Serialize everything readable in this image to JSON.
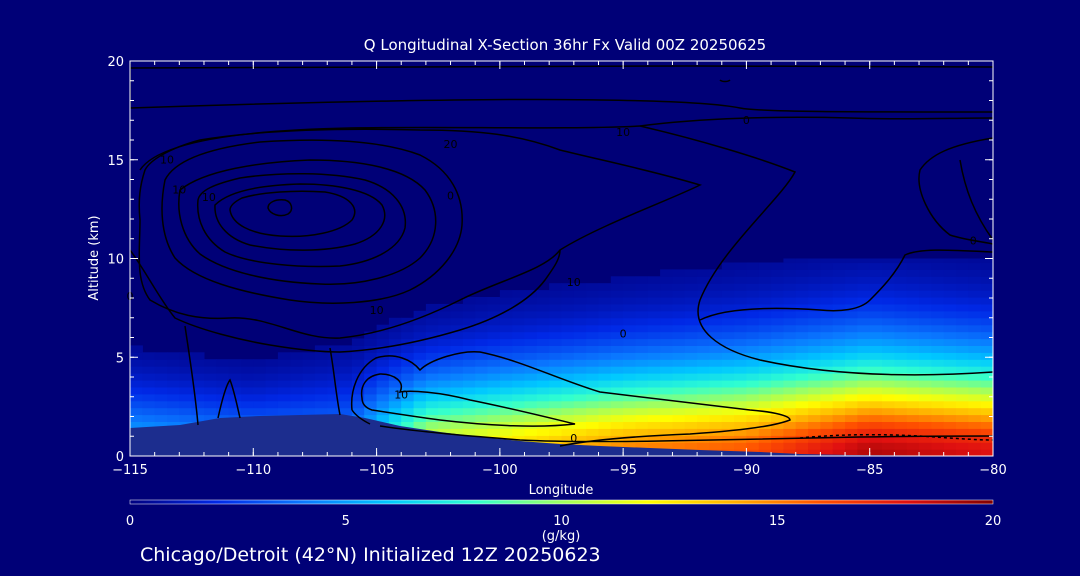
{
  "chart_data": {
    "type": "heatmap",
    "title": "Q Longitudinal X-Section 36hr  Fx Valid 00Z 20250625",
    "subtitle": "Chicago/Detroit (42°N) Initialized 12Z 20250623",
    "xlabel": "Longitude",
    "ylabel": "Altitude (km)",
    "xlim": [
      -115,
      -80
    ],
    "ylim": [
      0,
      20
    ],
    "x_ticks": [
      "−115",
      "−110",
      "−105",
      "−100",
      "−95",
      "−90",
      "−85",
      "−80"
    ],
    "y_ticks": [
      "0",
      "5",
      "10",
      "15",
      "20"
    ],
    "colorbar": {
      "label": "(g/kg)",
      "range": [
        0,
        20
      ],
      "ticks": [
        "0",
        "5",
        "10",
        "15",
        "20"
      ],
      "colors": [
        "#000080",
        "#0028e6",
        "#0a78ff",
        "#00c8ff",
        "#30ffd0",
        "#a0ff60",
        "#ffff00",
        "#ffb000",
        "#ff5000",
        "#e01010",
        "#800000"
      ]
    },
    "moisture_field": [
      {
        "lon": -115,
        "surface_q": 6,
        "depth_km": 5.5
      },
      {
        "lon": -110,
        "surface_q": 5,
        "depth_km": 5.0
      },
      {
        "lon": -106,
        "surface_q": 5,
        "depth_km": 6.0
      },
      {
        "lon": -103,
        "surface_q": 12,
        "depth_km": 6.5
      },
      {
        "lon": -100,
        "surface_q": 13,
        "depth_km": 7.0
      },
      {
        "lon": -95,
        "surface_q": 15,
        "depth_km": 7.5
      },
      {
        "lon": -90,
        "surface_q": 16,
        "depth_km": 8.0
      },
      {
        "lon": -85,
        "surface_q": 19,
        "depth_km": 8.5
      },
      {
        "lon": -80,
        "surface_q": 18,
        "depth_km": 8.0
      }
    ],
    "contour_labels": [
      {
        "text": "10",
        "lon": -95.0,
        "alt": 16.2
      },
      {
        "text": "20",
        "lon": -102.0,
        "alt": 15.6
      },
      {
        "text": "0",
        "lon": -90.0,
        "alt": 16.8
      },
      {
        "text": "10",
        "lon": -113.5,
        "alt": 14.8
      },
      {
        "text": "10",
        "lon": -113.0,
        "alt": 13.3
      },
      {
        "text": "10",
        "lon": -111.8,
        "alt": 12.9
      },
      {
        "text": "0",
        "lon": -102.0,
        "alt": 13.0
      },
      {
        "text": "0",
        "lon": -80.8,
        "alt": 10.7
      },
      {
        "text": "10",
        "lon": -97.0,
        "alt": 8.6
      },
      {
        "text": "10",
        "lon": -105.0,
        "alt": 7.2
      },
      {
        "text": "0",
        "lon": -115.0,
        "alt": 7.9
      },
      {
        "text": "0",
        "lon": -95.0,
        "alt": 6.0
      },
      {
        "text": "10",
        "lon": -104.0,
        "alt": 2.9
      },
      {
        "text": "0",
        "lon": -97.0,
        "alt": 0.7
      }
    ]
  }
}
